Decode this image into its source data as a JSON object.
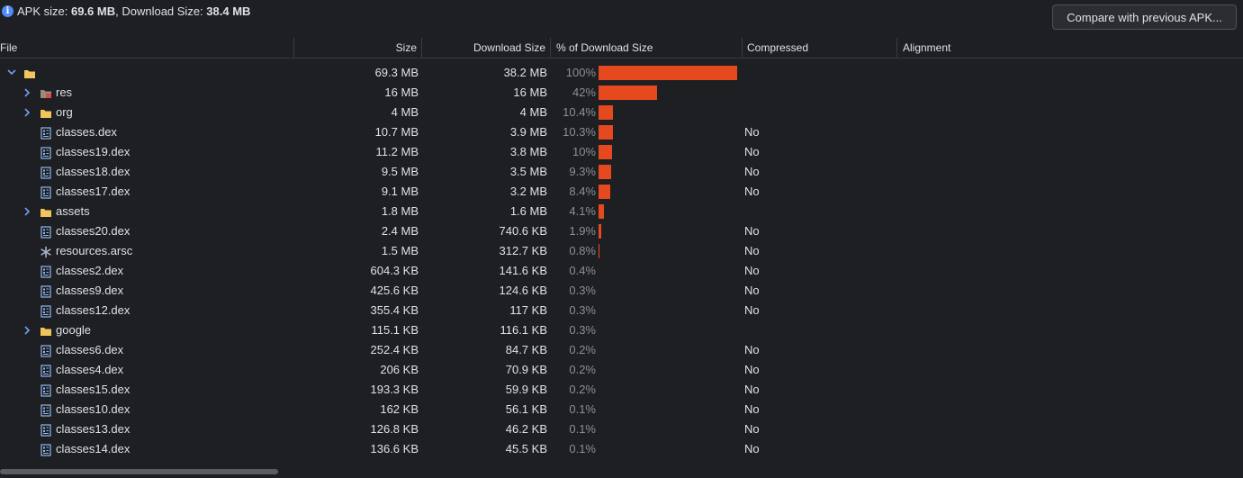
{
  "summary": {
    "apk_label": "APK size: ",
    "apk_value": "69.6 MB",
    "sep": ", Download Size: ",
    "download_value": "38.4 MB"
  },
  "toolbar": {
    "compare_label": "Compare with previous APK..."
  },
  "columns": {
    "file": "File",
    "size": "Size",
    "download": "Download Size",
    "percent": "% of Download Size",
    "compressed": "Compressed",
    "alignment": "Alignment"
  },
  "rows": [
    {
      "name": "",
      "icon": "folder-icon",
      "level": 0,
      "expand": "down",
      "size": "69.3 MB",
      "download": "38.2 MB",
      "pct": "100%",
      "frac": 1.0,
      "compressed": ""
    },
    {
      "name": "res",
      "icon": "res-folder-icon",
      "level": 1,
      "expand": "right",
      "size": "16 MB",
      "download": "16 MB",
      "pct": "42%",
      "frac": 0.42,
      "compressed": ""
    },
    {
      "name": "org",
      "icon": "folder-icon",
      "level": 1,
      "expand": "right",
      "size": "4 MB",
      "download": "4 MB",
      "pct": "10.4%",
      "frac": 0.104,
      "compressed": ""
    },
    {
      "name": "classes.dex",
      "icon": "dex-file-icon",
      "level": 1,
      "expand": "",
      "size": "10.7 MB",
      "download": "3.9 MB",
      "pct": "10.3%",
      "frac": 0.103,
      "compressed": "No"
    },
    {
      "name": "classes19.dex",
      "icon": "dex-file-icon",
      "level": 1,
      "expand": "",
      "size": "11.2 MB",
      "download": "3.8 MB",
      "pct": "10%",
      "frac": 0.1,
      "compressed": "No"
    },
    {
      "name": "classes18.dex",
      "icon": "dex-file-icon",
      "level": 1,
      "expand": "",
      "size": "9.5 MB",
      "download": "3.5 MB",
      "pct": "9.3%",
      "frac": 0.093,
      "compressed": "No"
    },
    {
      "name": "classes17.dex",
      "icon": "dex-file-icon",
      "level": 1,
      "expand": "",
      "size": "9.1 MB",
      "download": "3.2 MB",
      "pct": "8.4%",
      "frac": 0.084,
      "compressed": "No"
    },
    {
      "name": "assets",
      "icon": "folder-icon",
      "level": 1,
      "expand": "right",
      "size": "1.8 MB",
      "download": "1.6 MB",
      "pct": "4.1%",
      "frac": 0.041,
      "compressed": ""
    },
    {
      "name": "classes20.dex",
      "icon": "dex-file-icon",
      "level": 1,
      "expand": "",
      "size": "2.4 MB",
      "download": "740.6 KB",
      "pct": "1.9%",
      "frac": 0.019,
      "compressed": "No"
    },
    {
      "name": "resources.arsc",
      "icon": "asterisk-icon",
      "level": 1,
      "expand": "",
      "size": "1.5 MB",
      "download": "312.7 KB",
      "pct": "0.8%",
      "frac": 0.008,
      "compressed": "No"
    },
    {
      "name": "classes2.dex",
      "icon": "dex-file-icon",
      "level": 1,
      "expand": "",
      "size": "604.3 KB",
      "download": "141.6 KB",
      "pct": "0.4%",
      "frac": 0.0,
      "compressed": "No"
    },
    {
      "name": "classes9.dex",
      "icon": "dex-file-icon",
      "level": 1,
      "expand": "",
      "size": "425.6 KB",
      "download": "124.6 KB",
      "pct": "0.3%",
      "frac": 0.0,
      "compressed": "No"
    },
    {
      "name": "classes12.dex",
      "icon": "dex-file-icon",
      "level": 1,
      "expand": "",
      "size": "355.4 KB",
      "download": "117 KB",
      "pct": "0.3%",
      "frac": 0.0,
      "compressed": "No"
    },
    {
      "name": "google",
      "icon": "folder-icon",
      "level": 1,
      "expand": "right",
      "size": "115.1 KB",
      "download": "116.1 KB",
      "pct": "0.3%",
      "frac": 0.0,
      "compressed": ""
    },
    {
      "name": "classes6.dex",
      "icon": "dex-file-icon",
      "level": 1,
      "expand": "",
      "size": "252.4 KB",
      "download": "84.7 KB",
      "pct": "0.2%",
      "frac": 0.0,
      "compressed": "No"
    },
    {
      "name": "classes4.dex",
      "icon": "dex-file-icon",
      "level": 1,
      "expand": "",
      "size": "206 KB",
      "download": "70.9 KB",
      "pct": "0.2%",
      "frac": 0.0,
      "compressed": "No"
    },
    {
      "name": "classes15.dex",
      "icon": "dex-file-icon",
      "level": 1,
      "expand": "",
      "size": "193.3 KB",
      "download": "59.9 KB",
      "pct": "0.2%",
      "frac": 0.0,
      "compressed": "No"
    },
    {
      "name": "classes10.dex",
      "icon": "dex-file-icon",
      "level": 1,
      "expand": "",
      "size": "162 KB",
      "download": "56.1 KB",
      "pct": "0.1%",
      "frac": 0.0,
      "compressed": "No"
    },
    {
      "name": "classes13.dex",
      "icon": "dex-file-icon",
      "level": 1,
      "expand": "",
      "size": "126.8 KB",
      "download": "46.2 KB",
      "pct": "0.1%",
      "frac": 0.0,
      "compressed": "No"
    },
    {
      "name": "classes14.dex",
      "icon": "dex-file-icon",
      "level": 1,
      "expand": "",
      "size": "136.6 KB",
      "download": "45.5 KB",
      "pct": "0.1%",
      "frac": 0.0,
      "compressed": "No"
    }
  ],
  "colors": {
    "bar": "#e6491d",
    "folder": "#f2c55c",
    "dex": "#8fb8f0"
  }
}
